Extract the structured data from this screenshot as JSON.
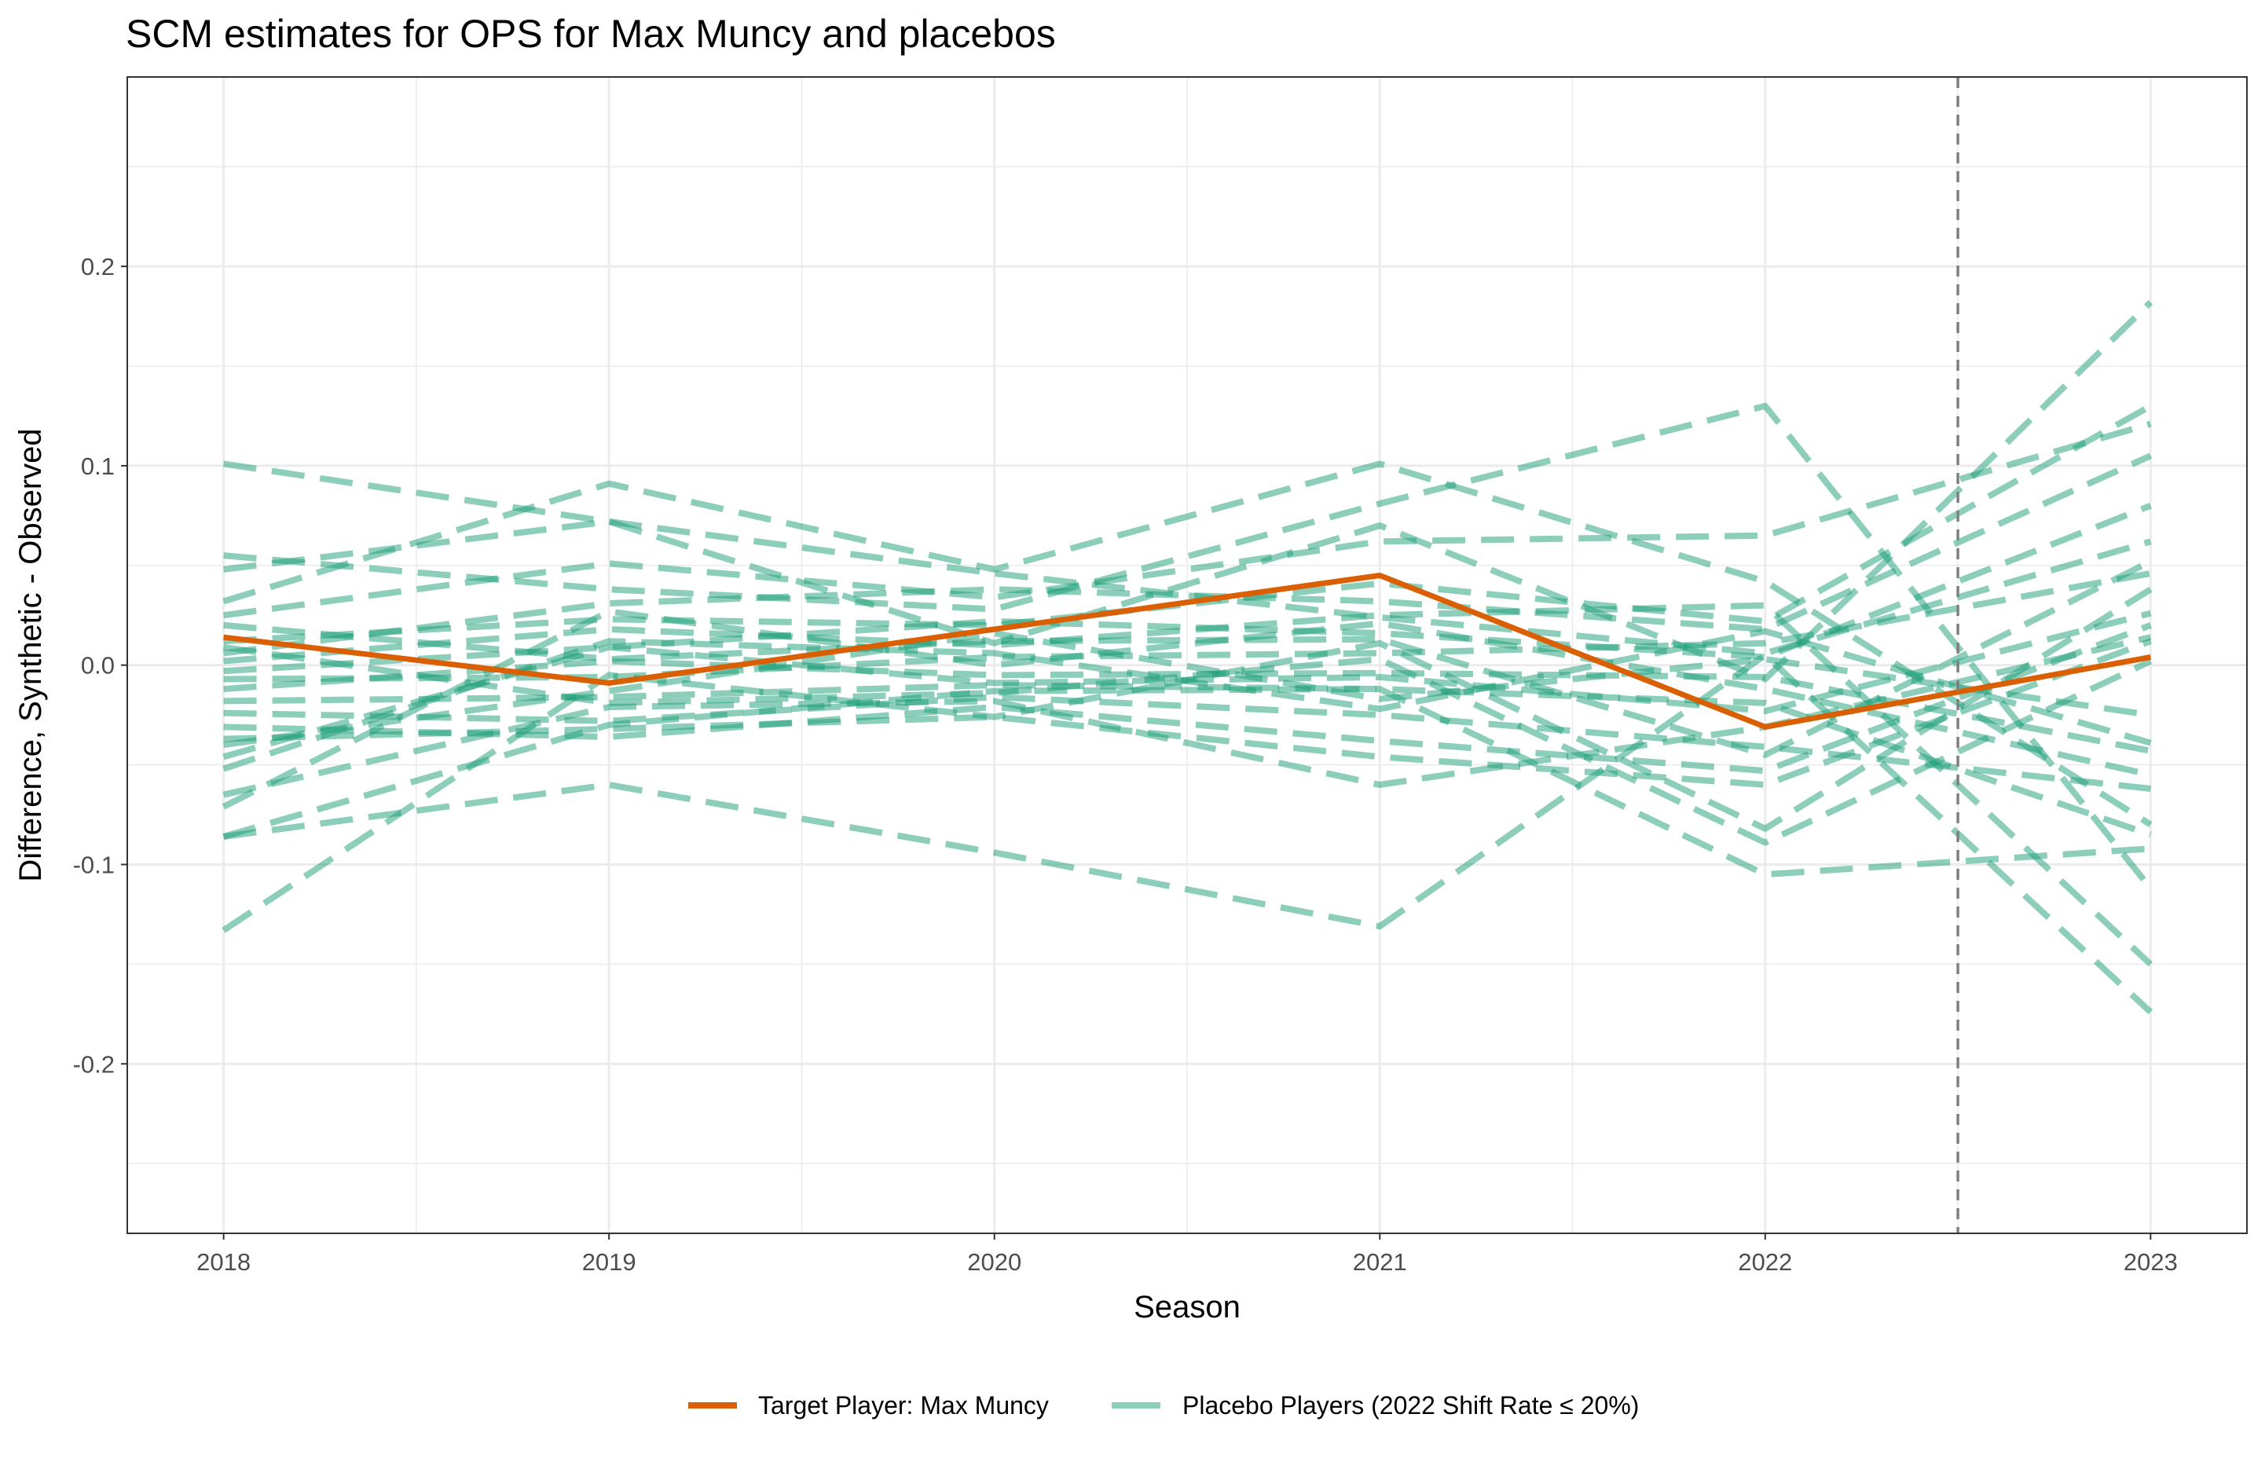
{
  "chart_data": {
    "type": "line",
    "title": "SCM estimates for OPS for Max Muncy and placebos",
    "xlabel": "Season",
    "ylabel": "Difference, Synthetic - Observed",
    "x": [
      2018,
      2019,
      2020,
      2021,
      2022,
      2023
    ],
    "x_ticks": [
      "2018",
      "2019",
      "2020",
      "2021",
      "2022",
      "2023"
    ],
    "y_ticks": [
      "0.2",
      "0.1",
      "0.0",
      "-0.1",
      "-0.2"
    ],
    "y_tick_values": [
      0.2,
      0.1,
      0.0,
      -0.1,
      -0.2
    ],
    "xlim": [
      2017.75,
      2023.25
    ],
    "ylim": [
      -0.285,
      0.295
    ],
    "grid": true,
    "vline": {
      "x": 2022.5,
      "style": "dashed"
    },
    "legend_position": "bottom",
    "colors": {
      "target": "#d95f02",
      "placebo": "#1b9e77",
      "vline": "#7f7f7f"
    },
    "series": [
      {
        "name": "Target Player: Max Muncy",
        "role": "target",
        "values": [
          0.014,
          -0.009,
          0.018,
          0.045,
          -0.031,
          0.004
        ]
      },
      {
        "name": "Placebo Players (2022 Shift Rate ≤ 20%)",
        "role": "placebo",
        "lines": [
          [
            0.101,
            0.072,
            0.046,
            0.024,
            0.006,
            0.062
          ],
          [
            0.055,
            0.038,
            0.028,
            0.081,
            0.13,
            -0.112
          ],
          [
            0.048,
            0.072,
            0.011,
            0.07,
            -0.007,
            0.182
          ],
          [
            0.032,
            0.091,
            0.048,
            0.101,
            0.042,
            -0.08
          ],
          [
            0.025,
            0.051,
            0.034,
            0.062,
            0.065,
            0.121
          ],
          [
            0.012,
            0.023,
            0.02,
            0.041,
            0.022,
            0.13
          ],
          [
            0.006,
            0.031,
            0.038,
            0.032,
            0.018,
            0.105
          ],
          [
            0.002,
            0.018,
            0.01,
            0.025,
            0.03,
            -0.15
          ],
          [
            -0.003,
            0.009,
            0.022,
            0.016,
            0.004,
            0.08
          ],
          [
            -0.007,
            -0.006,
            0.004,
            0.006,
            0.011,
            0.046
          ],
          [
            -0.012,
            0.002,
            -0.005,
            -0.004,
            -0.006,
            -0.043
          ],
          [
            -0.018,
            -0.016,
            -0.01,
            -0.012,
            -0.019,
            -0.085
          ],
          [
            -0.024,
            -0.028,
            -0.016,
            -0.025,
            -0.041,
            -0.062
          ],
          [
            -0.031,
            -0.036,
            -0.021,
            -0.038,
            -0.053,
            0.02
          ],
          [
            -0.037,
            -0.032,
            -0.026,
            -0.046,
            -0.06,
            0.012
          ],
          [
            -0.046,
            0.009,
            -0.009,
            -0.006,
            -0.023,
            0.026
          ],
          [
            -0.052,
            0.012,
            0.006,
            -0.022,
            0.017,
            -0.039
          ],
          [
            -0.065,
            -0.021,
            -0.018,
            -0.06,
            -0.031,
            0.014
          ],
          [
            -0.071,
            0.027,
            0.0,
            0.021,
            -0.012,
            -0.055
          ],
          [
            -0.086,
            -0.06,
            -0.094,
            -0.131,
            0.005,
            -0.174
          ],
          [
            -0.086,
            -0.03,
            -0.013,
            -0.012,
            -0.105,
            -0.092
          ],
          [
            -0.133,
            -0.005,
            -0.026,
            0.011,
            -0.082,
            0.038
          ],
          [
            0.02,
            0.003,
            0.012,
            0.013,
            -0.045,
            0.052
          ],
          [
            -0.04,
            -0.013,
            0.016,
            -0.017,
            0.003,
            -0.025
          ],
          [
            0.009,
            -0.019,
            -0.014,
            0.003,
            -0.089,
            0.002
          ]
        ]
      }
    ]
  }
}
